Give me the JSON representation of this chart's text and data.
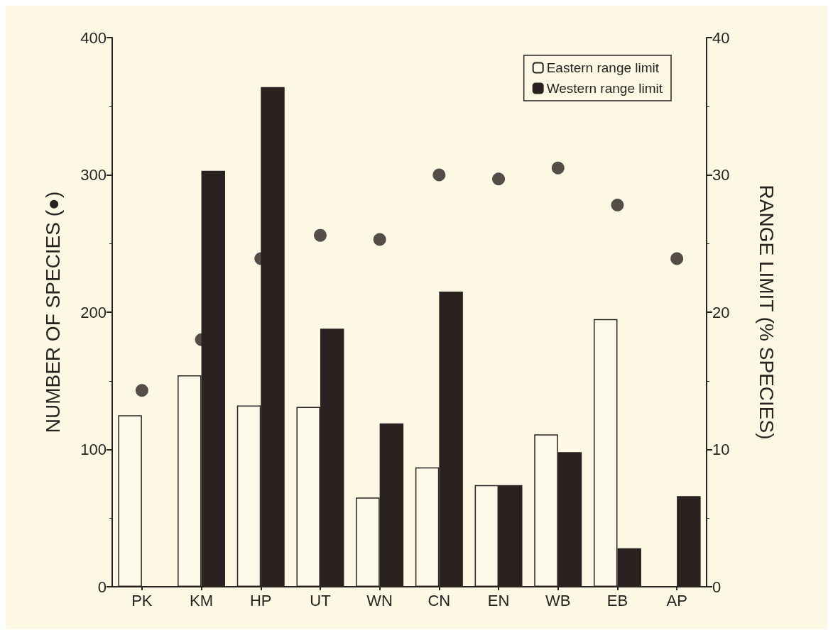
{
  "chart_data": {
    "type": "bar",
    "ylabel": "NUMBER OF SPECIES (●)",
    "y2label": "RANGE LIMIT (% SPECIES)",
    "categories": [
      "PK",
      "KM",
      "HP",
      "UT",
      "WN",
      "CN",
      "EN",
      "WB",
      "EB",
      "AP"
    ],
    "series": [
      {
        "name": "Eastern range limit",
        "axis": "y2",
        "color": "#fdf9e8",
        "values": [
          12.5,
          15.4,
          13.2,
          13.1,
          6.5,
          8.7,
          7.4,
          11.1,
          19.5,
          null
        ]
      },
      {
        "name": "Western range limit",
        "axis": "y2",
        "color": "#2a2220",
        "values": [
          null,
          30.3,
          36.4,
          18.8,
          11.9,
          21.5,
          7.4,
          9.8,
          2.8,
          6.6
        ]
      },
      {
        "type": "scatter",
        "color": "#2a2220",
        "marker": "circle",
        "x": [
          "PK",
          "KM",
          "HP",
          "UT",
          "WN",
          "CN",
          "EN",
          "WB",
          "EB",
          "AP"
        ],
        "values": [
          143,
          180,
          239,
          256,
          253,
          300,
          297,
          305,
          278,
          239
        ]
      }
    ],
    "ylim": [
      0,
      400
    ],
    "yticks": [
      0,
      100,
      200,
      300,
      400
    ],
    "y2lim": [
      0,
      40
    ],
    "y2ticks": [
      0,
      10,
      20,
      30,
      40
    ],
    "grid": false,
    "legend": "top right"
  }
}
